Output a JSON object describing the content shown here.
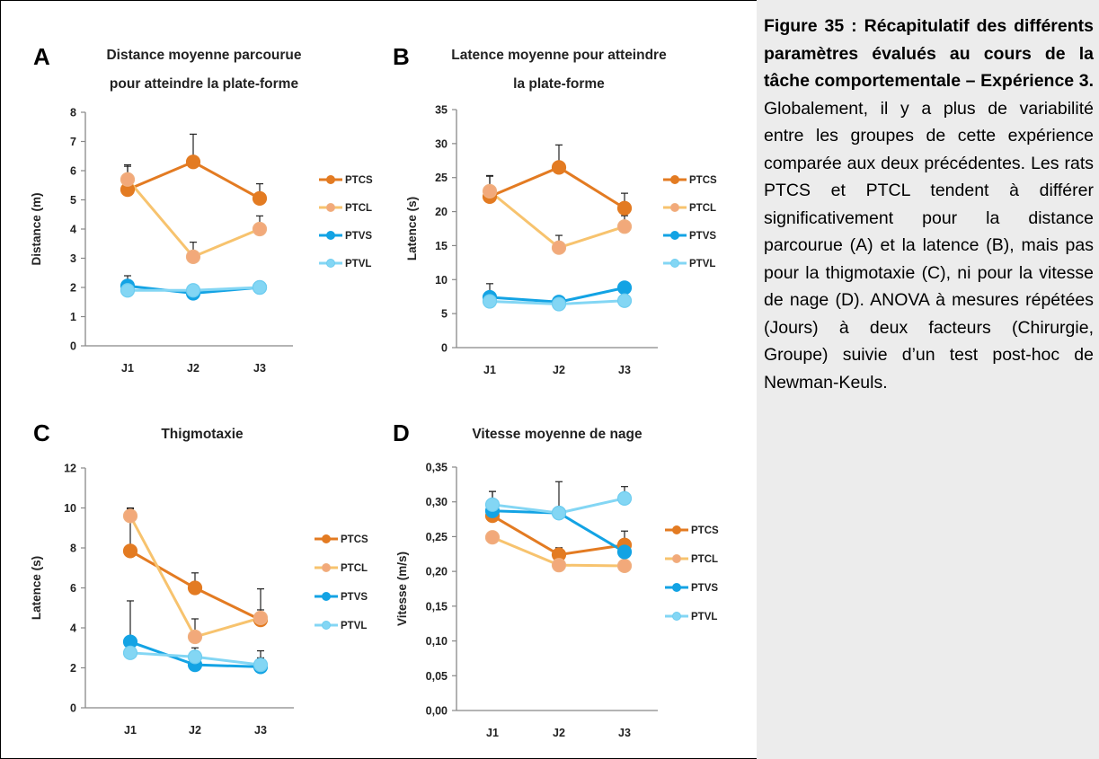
{
  "colors": {
    "PTCS": "#e37b22",
    "PTCL": "#f7c36e",
    "PTCL_marker": "#f2a97a",
    "PTVS": "#13a3e4",
    "PTVL": "#83d6f4",
    "axis": "#888888",
    "error_bar": "#222222",
    "caption_background": "#ececec"
  },
  "chart_data": [
    {
      "panel": "A",
      "type": "line",
      "title_lines": [
        "Distance moyenne parcourue",
        "pour atteindre la plate-forme"
      ],
      "xlabel": "",
      "ylabel": "Distance (m)",
      "categories": [
        "J1",
        "J2",
        "J3"
      ],
      "ylim": [
        0,
        8
      ],
      "yticks": [
        "0",
        "1",
        "2",
        "3",
        "4",
        "5",
        "6",
        "7",
        "8"
      ],
      "series": [
        {
          "name": "PTCS",
          "values": [
            5.35,
            6.3,
            5.05
          ],
          "errors": [
            0.8,
            0.95,
            0.5
          ]
        },
        {
          "name": "PTCL",
          "values": [
            5.7,
            3.05,
            4.0
          ],
          "errors": [
            0.5,
            0.5,
            0.45
          ]
        },
        {
          "name": "PTVS",
          "values": [
            2.05,
            1.8,
            2.0
          ],
          "errors": [
            0.35,
            0.15,
            0.1
          ]
        },
        {
          "name": "PTVL",
          "values": [
            1.9,
            1.9,
            2.0
          ],
          "errors": [
            0.2,
            0.1,
            0.1
          ]
        }
      ],
      "legend": "right"
    },
    {
      "panel": "B",
      "type": "line",
      "title_lines": [
        "Latence moyenne pour atteindre",
        "la plate-forme"
      ],
      "xlabel": "",
      "ylabel": "Latence (s)",
      "categories": [
        "J1",
        "J2",
        "J3"
      ],
      "ylim": [
        0,
        35
      ],
      "yticks": [
        "0",
        "5",
        "10",
        "15",
        "20",
        "25",
        "30",
        "35"
      ],
      "series": [
        {
          "name": "PTCS",
          "values": [
            22.2,
            26.5,
            20.5
          ],
          "errors": [
            3.0,
            3.3,
            2.2
          ]
        },
        {
          "name": "PTCL",
          "values": [
            23.0,
            14.7,
            17.8
          ],
          "errors": [
            2.3,
            1.8,
            1.6
          ]
        },
        {
          "name": "PTVS",
          "values": [
            7.4,
            6.7,
            8.8
          ],
          "errors": [
            2.0,
            0.6,
            0.6
          ]
        },
        {
          "name": "PTVL",
          "values": [
            6.8,
            6.4,
            6.9
          ],
          "errors": [
            0.8,
            0.4,
            0.4
          ]
        }
      ],
      "legend": "right"
    },
    {
      "panel": "C",
      "type": "line",
      "title_lines": [
        "Thigmotaxie"
      ],
      "xlabel": "",
      "ylabel": "Latence (s)",
      "categories": [
        "J1",
        "J2",
        "J3"
      ],
      "ylim": [
        0,
        12
      ],
      "yticks": [
        "0",
        "2",
        "4",
        "6",
        "8",
        "10",
        "12"
      ],
      "series": [
        {
          "name": "PTCS",
          "values": [
            7.85,
            6.0,
            4.4
          ],
          "errors": [
            2.15,
            0.75,
            1.55
          ]
        },
        {
          "name": "PTCL",
          "values": [
            9.6,
            3.55,
            4.5
          ],
          "errors": [
            0.35,
            0.9,
            0.4
          ]
        },
        {
          "name": "PTVS",
          "values": [
            3.3,
            2.15,
            2.05
          ],
          "errors": [
            2.05,
            0.3,
            0.45
          ]
        },
        {
          "name": "PTVL",
          "values": [
            2.75,
            2.55,
            2.15
          ],
          "errors": [
            0.35,
            0.45,
            0.7
          ]
        }
      ],
      "legend": "right"
    },
    {
      "panel": "D",
      "type": "line",
      "title_lines": [
        "Vitesse moyenne de nage"
      ],
      "xlabel": "",
      "ylabel": "Vitesse (m/s)",
      "categories": [
        "J1",
        "J2",
        "J3"
      ],
      "ylim": [
        0,
        0.35
      ],
      "yticks": [
        "0,00",
        "0,05",
        "0,10",
        "0,15",
        "0,20",
        "0,25",
        "0,30",
        "0,35"
      ],
      "series": [
        {
          "name": "PTCS",
          "values": [
            0.28,
            0.224,
            0.238
          ],
          "errors": [
            0.018,
            0.01,
            0.02
          ]
        },
        {
          "name": "PTCL",
          "values": [
            0.249,
            0.209,
            0.208
          ],
          "errors": [
            0.0,
            0.0,
            0.0
          ]
        },
        {
          "name": "PTVS",
          "values": [
            0.287,
            0.284,
            0.228
          ],
          "errors": [
            0.028,
            0.0,
            0.0
          ]
        },
        {
          "name": "PTVL",
          "values": [
            0.296,
            0.284,
            0.305
          ],
          "errors": [
            0.019,
            0.045,
            0.017
          ]
        }
      ],
      "legend": "right"
    }
  ],
  "caption": {
    "bold_text": "Figure 35 : Récapitulatif des différents paramètres évalués au cours de la tâche comportementale – Expérience 3.",
    "body_text": " Globalement, il y a plus de variabilité entre les groupes de cette expérience comparée aux deux précédentes. Les rats PTCS et PTCL tendent à différer significativement pour la distance parcourue (A) et la latence (B), mais pas pour la thigmotaxie (C), ni pour la vitesse de nage (D). ANOVA à mesures répétées (Jours) à deux facteurs (Chirurgie, Groupe) suivie d’un test post-hoc de Newman-Keuls."
  }
}
